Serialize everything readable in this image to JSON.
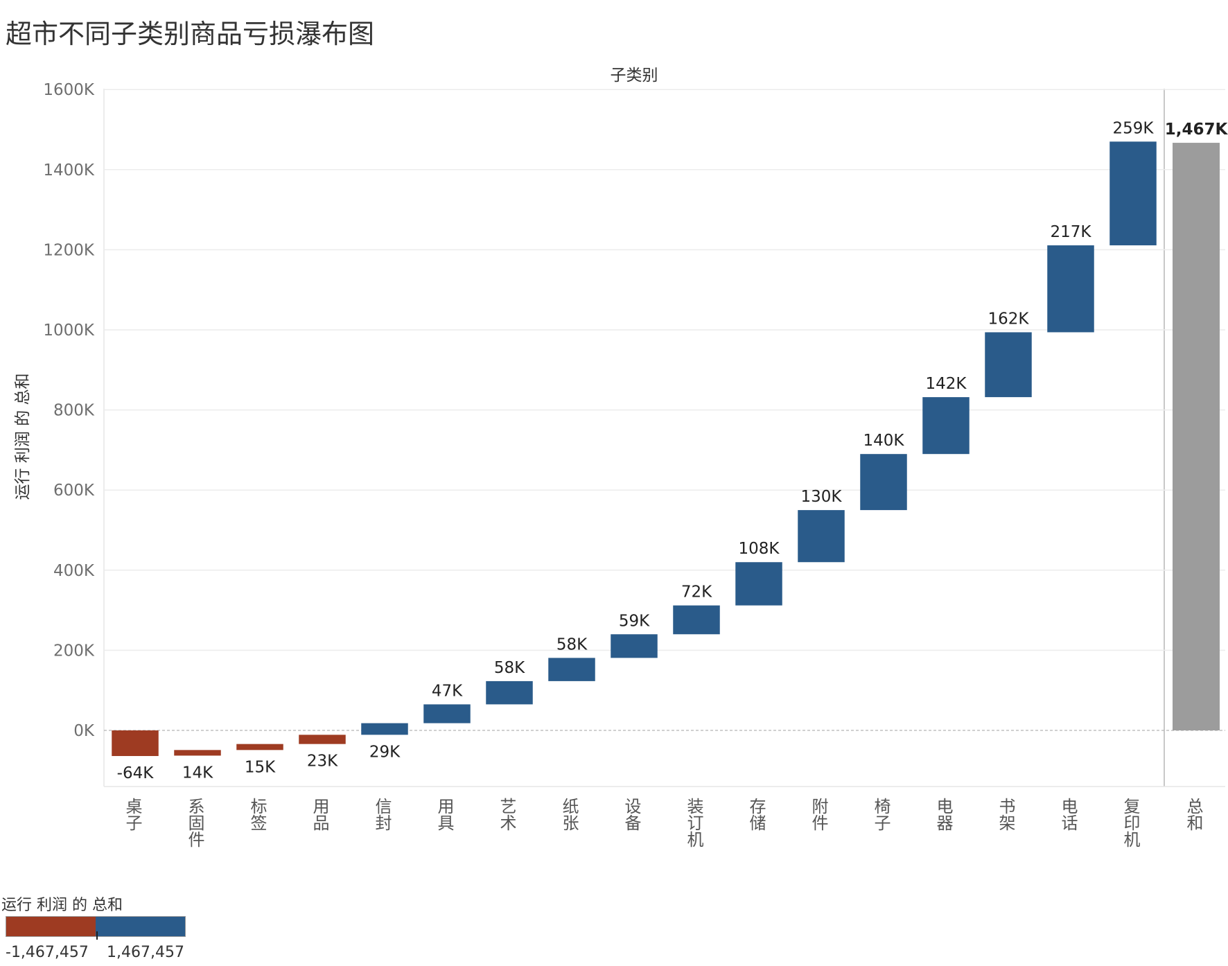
{
  "title": "超市不同子类别商品亏损瀑布图",
  "colors": {
    "negative": "#9e3b22",
    "positive": "#2a5b8a",
    "total": "#9c9c9c",
    "grid": "#ececec",
    "axis_text": "#6e6e6e",
    "label_text": "#222222"
  },
  "chart_data": {
    "type": "waterfall",
    "column_header": "子类别",
    "ylabel": "运行 利润 的 总和",
    "ylim": [
      -140,
      1720
    ],
    "yticks": [
      0,
      200,
      400,
      600,
      800,
      1000,
      1200,
      1400,
      1600
    ],
    "ytick_labels": [
      "0K",
      "200K",
      "400K",
      "600K",
      "800K",
      "1000K",
      "1200K",
      "1400K",
      "1600K"
    ],
    "grid": true,
    "unit": "K",
    "categories": [
      "桌子",
      "系固件",
      "标签",
      "用品",
      "信封",
      "用具",
      "艺术",
      "纸张",
      "设备",
      "装订机",
      "存储",
      "附件",
      "椅子",
      "电器",
      "书架",
      "电话",
      "复印机"
    ],
    "bars": [
      {
        "category": "桌子",
        "start": 0,
        "end": -64,
        "label": "-64K"
      },
      {
        "category": "系固件",
        "start": -49,
        "end": -63,
        "label": "14K"
      },
      {
        "category": "标签",
        "start": -34,
        "end": -49,
        "label": "15K"
      },
      {
        "category": "用品",
        "start": -11,
        "end": -34,
        "label": "23K"
      },
      {
        "category": "信封",
        "start": -11,
        "end": 18,
        "label": "29K"
      },
      {
        "category": "用具",
        "start": 18,
        "end": 65,
        "label": "47K"
      },
      {
        "category": "艺术",
        "start": 65,
        "end": 123,
        "label": "58K"
      },
      {
        "category": "纸张",
        "start": 123,
        "end": 181,
        "label": "58K"
      },
      {
        "category": "设备",
        "start": 181,
        "end": 240,
        "label": "59K"
      },
      {
        "category": "装订机",
        "start": 240,
        "end": 312,
        "label": "72K"
      },
      {
        "category": "存储",
        "start": 312,
        "end": 420,
        "label": "108K"
      },
      {
        "category": "附件",
        "start": 420,
        "end": 550,
        "label": "130K"
      },
      {
        "category": "椅子",
        "start": 550,
        "end": 690,
        "label": "140K"
      },
      {
        "category": "电器",
        "start": 690,
        "end": 832,
        "label": "142K"
      },
      {
        "category": "书架",
        "start": 832,
        "end": 994,
        "label": "162K"
      },
      {
        "category": "电话",
        "start": 994,
        "end": 1211,
        "label": "217K"
      },
      {
        "category": "复印机",
        "start": 1211,
        "end": 1470,
        "label": "259K"
      }
    ],
    "total": {
      "category": "总和",
      "value": 1467,
      "label": "1,467K"
    },
    "legend": {
      "title": "运行 利润 的 总和",
      "min": "-1,467,457",
      "max": "1,467,457",
      "placement": "bottom-left"
    }
  }
}
